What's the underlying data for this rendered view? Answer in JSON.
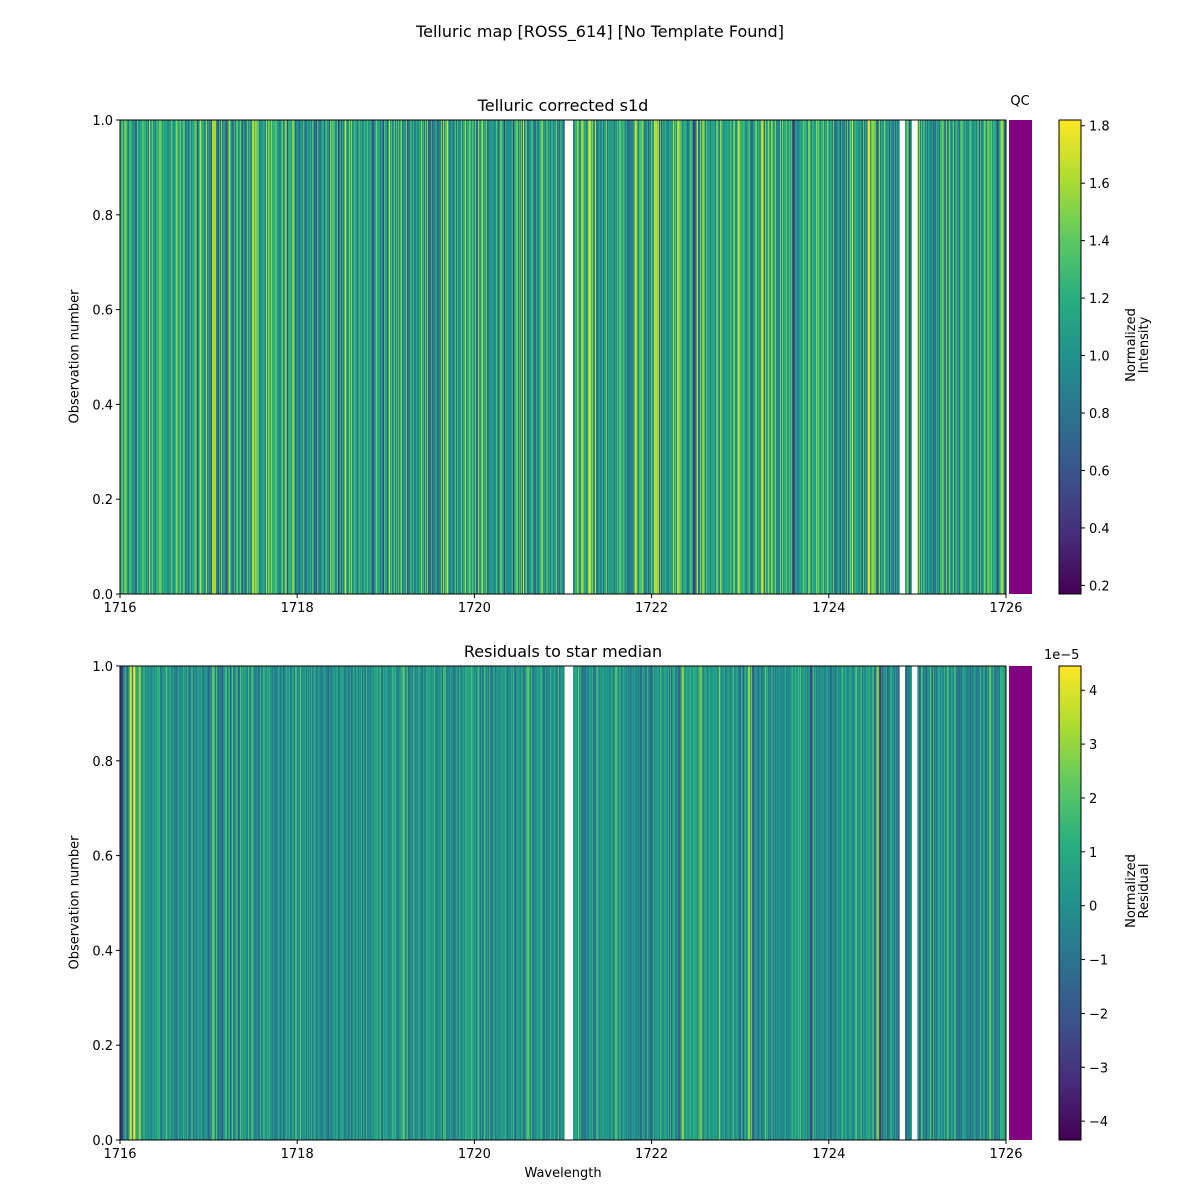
{
  "figure": {
    "suptitle": "Telluric map [ROSS_614] [No Template Found]"
  },
  "chart_data": [
    {
      "type": "heatmap",
      "title": "Telluric corrected s1d",
      "xlabel": "",
      "ylabel": "Observation number",
      "xlim": [
        1716,
        1726
      ],
      "ylim": [
        0.0,
        1.0
      ],
      "xticks": [
        "1716",
        "1718",
        "1720",
        "1722",
        "1724",
        "1726"
      ],
      "xtick_values": [
        1716,
        1718,
        1720,
        1722,
        1724,
        1726
      ],
      "yticks": [
        "0.0",
        "0.2",
        "0.4",
        "0.6",
        "0.8",
        "1.0"
      ],
      "ytick_values": [
        0.0,
        0.2,
        0.4,
        0.6,
        0.8,
        1.0
      ],
      "colormap": "viridis",
      "colorbar": {
        "label": "Normalized\nIntensity",
        "range": [
          0.17,
          1.82
        ],
        "ticks": [
          "0.2",
          "0.4",
          "0.6",
          "0.8",
          "1.0",
          "1.2",
          "1.4",
          "1.6",
          "1.8"
        ],
        "tick_values": [
          0.2,
          0.4,
          0.6,
          0.8,
          1.0,
          1.2,
          1.4,
          1.6,
          1.8
        ],
        "offset_text": ""
      },
      "baseline_value": 1.1,
      "noise_spread": 0.25,
      "gaps": [
        [
          1721.02,
          1721.11
        ],
        [
          1724.8,
          1724.86
        ],
        [
          1724.94,
          1725.0
        ]
      ],
      "features": [
        {
          "x": 1716.06,
          "value": 1.45
        },
        {
          "x": 1716.45,
          "value": 1.45
        },
        {
          "x": 1717.05,
          "value": 1.62
        },
        {
          "x": 1717.07,
          "value": 1.6
        },
        {
          "x": 1717.2,
          "value": 0.55
        },
        {
          "x": 1717.5,
          "value": 1.62
        },
        {
          "x": 1717.53,
          "value": 1.55
        },
        {
          "x": 1718.4,
          "value": 1.4
        },
        {
          "x": 1718.85,
          "value": 0.6
        },
        {
          "x": 1719.5,
          "value": 0.7
        },
        {
          "x": 1720.3,
          "value": 1.4
        },
        {
          "x": 1721.22,
          "value": 1.55
        },
        {
          "x": 1721.3,
          "value": 1.75
        },
        {
          "x": 1721.82,
          "value": 1.7
        },
        {
          "x": 1722.05,
          "value": 1.65
        },
        {
          "x": 1722.3,
          "value": 1.7
        },
        {
          "x": 1722.48,
          "value": 0.45
        },
        {
          "x": 1723.25,
          "value": 1.7
        },
        {
          "x": 1723.6,
          "value": 0.4
        },
        {
          "x": 1724.45,
          "value": 1.8
        },
        {
          "x": 1724.5,
          "value": 1.55
        },
        {
          "x": 1725.8,
          "value": 1.45
        }
      ],
      "qc": {
        "label": "QC",
        "color": "#800080"
      }
    },
    {
      "type": "heatmap",
      "title": "Residuals to star median",
      "xlabel": "Wavelength",
      "ylabel": "Observation number",
      "xlim": [
        1716,
        1726
      ],
      "ylim": [
        0.0,
        1.0
      ],
      "xticks": [
        "1716",
        "1718",
        "1720",
        "1722",
        "1724",
        "1726"
      ],
      "xtick_values": [
        1716,
        1718,
        1720,
        1722,
        1724,
        1726
      ],
      "yticks": [
        "0.0",
        "0.2",
        "0.4",
        "0.6",
        "0.8",
        "1.0"
      ],
      "ytick_values": [
        0.0,
        0.2,
        0.4,
        0.6,
        0.8,
        1.0
      ],
      "colormap": "viridis",
      "colorbar": {
        "label": "Normalized\nResidual",
        "range": [
          -4.35,
          4.45
        ],
        "ticks": [
          "−4",
          "−3",
          "−2",
          "−1",
          "0",
          "1",
          "2",
          "3",
          "4"
        ],
        "tick_values": [
          -4,
          -3,
          -2,
          -1,
          0,
          1,
          2,
          3,
          4
        ],
        "offset_text": "1e−5"
      },
      "baseline_value": 0.2,
      "noise_spread": 0.9,
      "gaps": [
        [
          1721.02,
          1721.11
        ],
        [
          1724.8,
          1724.86
        ],
        [
          1724.94,
          1725.0
        ]
      ],
      "features": [
        {
          "x": 1716.02,
          "value": -3.0
        },
        {
          "x": 1716.12,
          "value": 3.8
        },
        {
          "x": 1716.16,
          "value": 4.2
        },
        {
          "x": 1716.22,
          "value": 3.0
        },
        {
          "x": 1717.05,
          "value": 2.2
        },
        {
          "x": 1719.2,
          "value": 2.3
        },
        {
          "x": 1720.6,
          "value": 2.2
        },
        {
          "x": 1721.6,
          "value": 2.0
        },
        {
          "x": 1722.35,
          "value": 3.0
        },
        {
          "x": 1722.55,
          "value": 2.6
        },
        {
          "x": 1723.1,
          "value": 3.0
        },
        {
          "x": 1723.8,
          "value": -2.6
        },
        {
          "x": 1724.55,
          "value": 2.8
        },
        {
          "x": 1724.58,
          "value": -3.0
        },
        {
          "x": 1725.82,
          "value": 2.2
        }
      ],
      "qc": {
        "label": "",
        "color": "#800080"
      }
    }
  ]
}
